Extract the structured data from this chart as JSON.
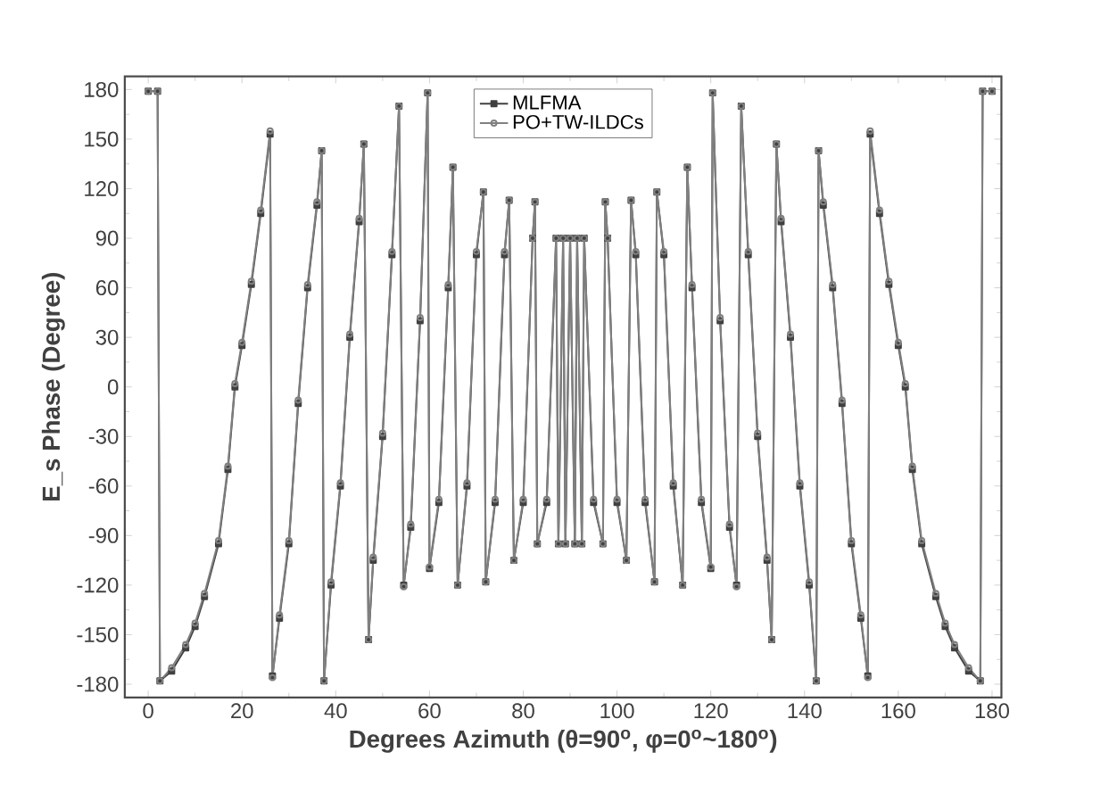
{
  "chart_data": {
    "type": "line",
    "xlabel": "Degrees Azimuth (θ=90$^{o}$, φ=0$^{o}$~180$^{o}$)",
    "ylabel": "E_s Phase (Degree)",
    "xlim": [
      -5,
      182
    ],
    "ylim": [
      -188,
      188
    ],
    "xticks": [
      0,
      20,
      40,
      60,
      80,
      100,
      120,
      140,
      160,
      180
    ],
    "yticks": [
      -180,
      -150,
      -120,
      -90,
      -60,
      -30,
      0,
      30,
      60,
      90,
      120,
      150,
      180
    ],
    "grid": false,
    "legend": "top",
    "line_style": "solid",
    "series": [
      {
        "name": "MLFMA",
        "color": "#404040",
        "marker": "square",
        "x": [
          0,
          2,
          2.5,
          5,
          8,
          10,
          12,
          15,
          17,
          18.5,
          20,
          22,
          24,
          26,
          26.5,
          28,
          30,
          32,
          34,
          36,
          37,
          37.5,
          39,
          41,
          43,
          45,
          46,
          47,
          48,
          50,
          52,
          53.5,
          54.5,
          56,
          58,
          59.6,
          60,
          62,
          64,
          65,
          66,
          68,
          70,
          71.5,
          72,
          74,
          76,
          77,
          78,
          80,
          82,
          82.5,
          83,
          85,
          87,
          87.5,
          88.5,
          89,
          90,
          91,
          91.5,
          92.5,
          93,
          95,
          97,
          97.5,
          98,
          100,
          102,
          103,
          104,
          106,
          108,
          108.5,
          110,
          112,
          114,
          115,
          116,
          118,
          120,
          120.4,
          122,
          124,
          125.5,
          126.5,
          128,
          130,
          132,
          133,
          134,
          135,
          137,
          139,
          141,
          142.5,
          143,
          144,
          146,
          148,
          150,
          152,
          153.5,
          154,
          156,
          158,
          160,
          161.5,
          163,
          165,
          168,
          170,
          172,
          175,
          177.5,
          178,
          180
        ],
        "values": [
          179,
          179,
          -178,
          -172,
          -158,
          -145,
          -127,
          -95,
          -50,
          0,
          25,
          62,
          105,
          153,
          -175,
          -140,
          -95,
          -10,
          60,
          110,
          143,
          -178,
          -120,
          -60,
          30,
          100,
          147,
          -153,
          -105,
          -30,
          80,
          170,
          -120,
          -85,
          40,
          178,
          -110,
          -70,
          60,
          133,
          -120,
          -60,
          80,
          118,
          -118,
          -70,
          80,
          113,
          -105,
          -70,
          90,
          112,
          -95,
          -70,
          90,
          -95,
          90,
          -95,
          90,
          -95,
          90,
          -95,
          90,
          -70,
          -95,
          112,
          90,
          -70,
          -105,
          113,
          80,
          -70,
          -118,
          118,
          80,
          -60,
          -120,
          133,
          60,
          -70,
          -110,
          178,
          40,
          -85,
          -120,
          170,
          80,
          -30,
          -105,
          -153,
          147,
          100,
          30,
          -60,
          -120,
          -178,
          143,
          110,
          60,
          -10,
          -95,
          -140,
          -175,
          153,
          105,
          62,
          25,
          0,
          -50,
          -95,
          -127,
          -145,
          -158,
          -172,
          -178,
          179,
          179
        ]
      },
      {
        "name": "PO+TW-ILDCs",
        "color": "#808080",
        "marker": "circle",
        "x": [
          0,
          2,
          2.5,
          5,
          8,
          10,
          12,
          15,
          17,
          18.5,
          20,
          22,
          24,
          26,
          26.5,
          28,
          30,
          32,
          34,
          36,
          37,
          37.5,
          39,
          41,
          43,
          45,
          46,
          47,
          48,
          50,
          52,
          53.5,
          54.5,
          56,
          58,
          59.6,
          60,
          62,
          64,
          65,
          66,
          68,
          70,
          71.5,
          72,
          74,
          76,
          77,
          78,
          80,
          82,
          82.5,
          83,
          85,
          87,
          87.5,
          88.5,
          89,
          90,
          91,
          91.5,
          92.5,
          93,
          95,
          97,
          97.5,
          98,
          100,
          102,
          103,
          104,
          106,
          108,
          108.5,
          110,
          112,
          114,
          115,
          116,
          118,
          120,
          120.4,
          122,
          124,
          125.5,
          126.5,
          128,
          130,
          132,
          133,
          134,
          135,
          137,
          139,
          141,
          142.5,
          143,
          144,
          146,
          148,
          150,
          152,
          153.5,
          154,
          156,
          158,
          160,
          161.5,
          163,
          165,
          168,
          170,
          172,
          175,
          177.5,
          178,
          180
        ],
        "values": [
          179,
          179,
          -178,
          -170,
          -156,
          -143,
          -125,
          -93,
          -48,
          2,
          27,
          64,
          107,
          155,
          -176,
          -138,
          -93,
          -8,
          62,
          112,
          143,
          -178,
          -118,
          -58,
          32,
          102,
          147,
          -153,
          -103,
          -28,
          82,
          170,
          -121,
          -83,
          42,
          178,
          -109,
          -68,
          62,
          133,
          -120,
          -58,
          82,
          118,
          -118,
          -68,
          82,
          113,
          -105,
          -68,
          90,
          112,
          -95,
          -68,
          90,
          -95,
          90,
          -95,
          90,
          -95,
          90,
          -95,
          90,
          -68,
          -95,
          112,
          90,
          -68,
          -105,
          113,
          82,
          -68,
          -118,
          118,
          82,
          -58,
          -120,
          133,
          62,
          -68,
          -109,
          178,
          42,
          -83,
          -121,
          170,
          82,
          -28,
          -103,
          -153,
          147,
          102,
          32,
          -58,
          -118,
          -178,
          143,
          112,
          62,
          -8,
          -93,
          -138,
          -176,
          155,
          107,
          64,
          27,
          2,
          -48,
          -93,
          -125,
          -143,
          -156,
          -170,
          -178,
          179,
          179
        ]
      }
    ]
  }
}
